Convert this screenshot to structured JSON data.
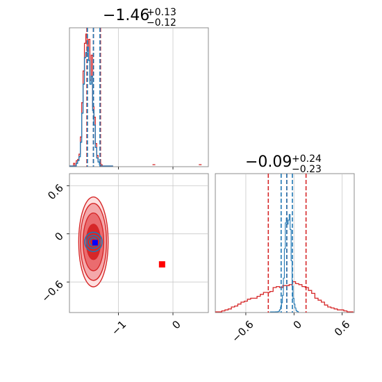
{
  "chart_data": [
    {
      "type": "histogram",
      "panel": "marginal-param-1",
      "title": {
        "main": "−1.46",
        "sup": "+0.13",
        "sub": "−0.12"
      },
      "xlim": [
        -1.9,
        0.65
      ],
      "xticks": [
        -1,
        0
      ],
      "grid": true,
      "colors": {
        "red": "#d62728",
        "blue": "#1f77b4"
      },
      "bins": [
        -1.9,
        -1.875,
        -1.85,
        -1.825,
        -1.8,
        -1.775,
        -1.75,
        -1.725,
        -1.7,
        -1.675,
        -1.65,
        -1.625,
        -1.6,
        -1.575,
        -1.55,
        -1.525,
        -1.5,
        -1.475,
        -1.45,
        -1.425,
        -1.4,
        -1.375,
        -1.35,
        -1.325,
        -1.3,
        -1.275,
        -1.25,
        -1.225,
        -1.2,
        -1.175,
        -1.15,
        -1.125,
        -1.1
      ],
      "series": [
        {
          "color": "red",
          "counts": [
            0,
            0,
            0,
            0.02,
            0,
            0.04,
            0.05,
            0.09,
            0.22,
            0.48,
            0.72,
            0.93,
            1.0,
            0.87,
            0.96,
            0.65,
            0.84,
            0.45,
            0.37,
            0.17,
            0.08,
            0.03,
            0.02,
            0.01,
            0,
            0,
            0,
            0,
            0,
            0,
            0,
            0
          ]
        },
        {
          "color": "blue",
          "counts": [
            0,
            0,
            0,
            0,
            0,
            0.02,
            0.04,
            0.07,
            0.18,
            0.4,
            0.62,
            0.82,
            0.86,
            0.9,
            0.8,
            0.62,
            0.68,
            0.42,
            0.31,
            0.14,
            0.06,
            0.03,
            0.01,
            0,
            0,
            0,
            0,
            0,
            0,
            0,
            0,
            0
          ]
        }
      ],
      "outliers_red": [
        [
          -0.35,
          0.01
        ],
        [
          0.5,
          0.01
        ]
      ],
      "quantiles": [
        {
          "color": "red",
          "values": [
            -1.58,
            -1.46,
            -1.33
          ]
        },
        {
          "color": "blue",
          "values": [
            -1.57,
            -1.46,
            -1.34
          ]
        }
      ]
    },
    {
      "type": "contour",
      "panel": "joint",
      "xlim": [
        -1.9,
        0.65
      ],
      "ylim": [
        -0.98,
        0.75
      ],
      "xticks": [
        -1,
        0
      ],
      "yticks": [
        -0.6,
        0.0,
        0.6
      ],
      "grid": true,
      "red_levels": [
        {
          "cx": -1.46,
          "cy": -0.1,
          "rx": 0.27,
          "ry": 0.56,
          "fill": "#fde0e0"
        },
        {
          "cx": -1.46,
          "cy": -0.1,
          "rx": 0.24,
          "ry": 0.48,
          "fill": "#f4a8aa"
        },
        {
          "cx": -1.46,
          "cy": -0.1,
          "rx": 0.19,
          "ry": 0.36,
          "fill": "#ea6c6f"
        },
        {
          "cx": -1.46,
          "cy": -0.1,
          "rx": 0.13,
          "ry": 0.22,
          "fill": "#d62728"
        }
      ],
      "blue_levels": [
        {
          "cx": -1.46,
          "cy": -0.1,
          "rx": 0.16,
          "ry": 0.12
        },
        {
          "cx": -1.46,
          "cy": -0.1,
          "rx": 0.12,
          "ry": 0.08
        },
        {
          "cx": -1.46,
          "cy": -0.1,
          "rx": 0.07,
          "ry": 0.05
        }
      ],
      "markers": [
        {
          "x": -1.43,
          "y": -0.11,
          "color": "#d62728"
        },
        {
          "x": -1.43,
          "y": -0.11,
          "color": "#0000ff"
        },
        {
          "x": -0.2,
          "y": -0.38,
          "color": "#ff0000"
        }
      ]
    },
    {
      "type": "histogram",
      "panel": "marginal-param-2",
      "title": {
        "main": "−0.09",
        "sup": "+0.24",
        "sub": "−0.23"
      },
      "xlim": [
        -0.98,
        0.75
      ],
      "xticks": [
        -0.6,
        0.0,
        0.6
      ],
      "grid": true,
      "colors": {
        "red": "#d62728",
        "blue": "#1f77b4"
      },
      "bins": [
        -0.98,
        -0.94,
        -0.9,
        -0.86,
        -0.82,
        -0.78,
        -0.74,
        -0.7,
        -0.66,
        -0.62,
        -0.58,
        -0.54,
        -0.5,
        -0.46,
        -0.42,
        -0.38,
        -0.34,
        -0.3,
        -0.26,
        -0.22,
        -0.18,
        -0.14,
        -0.1,
        -0.06,
        -0.02,
        0.02,
        0.06,
        0.1,
        0.14,
        0.18,
        0.22,
        0.26,
        0.3,
        0.34,
        0.38,
        0.42,
        0.46,
        0.5,
        0.54,
        0.58,
        0.62,
        0.66,
        0.7,
        0.74
      ],
      "red_counts": [
        0,
        0,
        0.01,
        0.02,
        0.03,
        0.05,
        0.06,
        0.08,
        0.1,
        0.11,
        0.13,
        0.14,
        0.14,
        0.16,
        0.18,
        0.2,
        0.2,
        0.21,
        0.25,
        0.26,
        0.25,
        0.27,
        0.27,
        0.28,
        0.31,
        0.29,
        0.28,
        0.26,
        0.25,
        0.22,
        0.19,
        0.14,
        0.12,
        0.1,
        0.07,
        0.05,
        0.04,
        0.03,
        0.02,
        0.02,
        0.01,
        0,
        0
      ],
      "blue_bins_fine": [
        -0.3,
        -0.2,
        0.05
      ],
      "quantiles": [
        {
          "color": "red",
          "values": [
            -0.32,
            -0.09,
            0.15
          ]
        },
        {
          "color": "blue",
          "values": [
            -0.16,
            -0.09,
            -0.02
          ]
        }
      ]
    }
  ]
}
